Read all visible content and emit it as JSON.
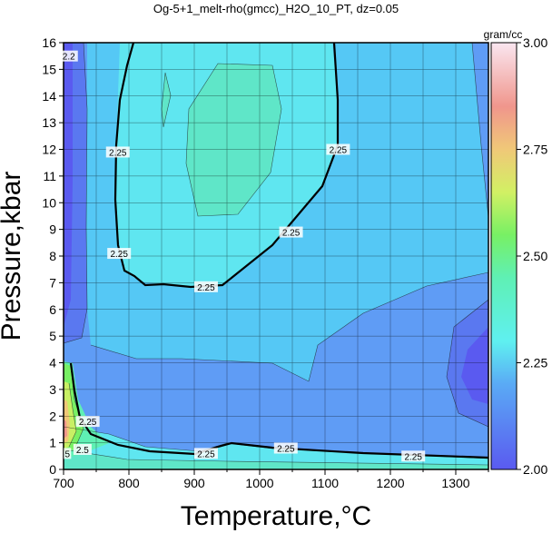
{
  "chart_data": {
    "type": "heatmap",
    "title": "Og-5+1_melt-rho(gmcc)_H2O_10_PT, dz=0.05",
    "xlabel": "Temperature,°C",
    "ylabel": "Pressure,kbar",
    "xlim": [
      700,
      1350
    ],
    "ylim": [
      0,
      16
    ],
    "x_ticks": [
      700,
      800,
      900,
      1000,
      1100,
      1200,
      1300
    ],
    "y_ticks": [
      0,
      1,
      2,
      3,
      4,
      5,
      6,
      7,
      8,
      9,
      10,
      11,
      12,
      13,
      14,
      15,
      16
    ],
    "grid": true,
    "colorbar": {
      "label": "gram/cc",
      "range": [
        2.0,
        3.0
      ],
      "ticks": [
        "2.00",
        "2.25",
        "2.50",
        "2.75",
        "3.00"
      ],
      "colors": {
        "2.00": "#5a5af0",
        "2.10": "#5f8cf5",
        "2.20": "#55d7f5",
        "2.25": "#5ff0f0",
        "2.35": "#5ff0b4",
        "2.50": "#78f064",
        "2.60": "#c8f064",
        "2.70": "#f0d278",
        "2.80": "#f0a08c",
        "3.00": "#fae6f0"
      }
    },
    "contour_labels": [
      {
        "text": "2.2",
        "x": 708,
        "y": 15.5
      },
      {
        "text": "2.25",
        "x": 783,
        "y": 11.9
      },
      {
        "text": "2.25",
        "x": 785,
        "y": 8.1
      },
      {
        "text": "2.25",
        "x": 918,
        "y": 6.85
      },
      {
        "text": "2.25",
        "x": 1048,
        "y": 8.9
      },
      {
        "text": "2.25",
        "x": 1120,
        "y": 12.0
      },
      {
        "text": "2.25",
        "x": 737,
        "y": 1.8
      },
      {
        "text": "2.5",
        "x": 729,
        "y": 0.75
      },
      {
        "text": "5",
        "x": 706,
        "y": 0.6
      },
      {
        "text": "2.25",
        "x": 918,
        "y": 0.6
      },
      {
        "text": "2.25",
        "x": 1040,
        "y": 0.8
      },
      {
        "text": "2.25",
        "x": 1235,
        "y": 0.5
      }
    ]
  }
}
